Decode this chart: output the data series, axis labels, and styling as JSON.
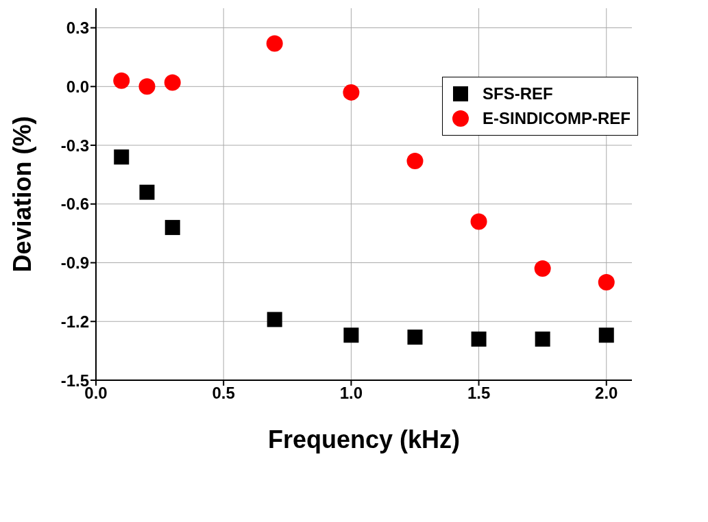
{
  "chart_data": {
    "type": "scatter",
    "xlabel": "Frequency (kHz)",
    "ylabel": "Deviation (%)",
    "xlim": [
      0,
      2.1
    ],
    "xticks": [
      {
        "value": 0,
        "label": "0.0"
      },
      0.5,
      {
        "value": 1,
        "label": "1.0"
      },
      1.5,
      {
        "value": 2,
        "label": "2.0"
      }
    ],
    "ylim": [
      -1.5,
      0.4
    ],
    "yticks": [
      -1.5,
      -1.2,
      -0.9,
      -0.6,
      -0.3,
      {
        "value": 0,
        "label": "0.0"
      },
      0.3
    ],
    "grid": true,
    "legend": "top right",
    "series": [
      {
        "name": "SFS-REF",
        "color": "#000000",
        "marker": "square",
        "x": [
          0.1,
          0.2,
          0.3,
          0.7,
          1.0,
          1.25,
          1.5,
          1.75,
          2.0
        ],
        "values": [
          -0.36,
          -0.54,
          -0.72,
          -1.19,
          -1.27,
          -1.28,
          -1.29,
          -1.29,
          -1.27
        ]
      },
      {
        "name": "E-SINDICOMP-REF",
        "color": "#ff0000",
        "marker": "circle",
        "x": [
          0.1,
          0.2,
          0.3,
          0.7,
          1.0,
          1.25,
          1.5,
          1.75,
          2.0
        ],
        "values": [
          0.03,
          0.0,
          0.02,
          0.22,
          -0.03,
          -0.38,
          -0.69,
          -0.93,
          -1.0
        ]
      }
    ]
  }
}
